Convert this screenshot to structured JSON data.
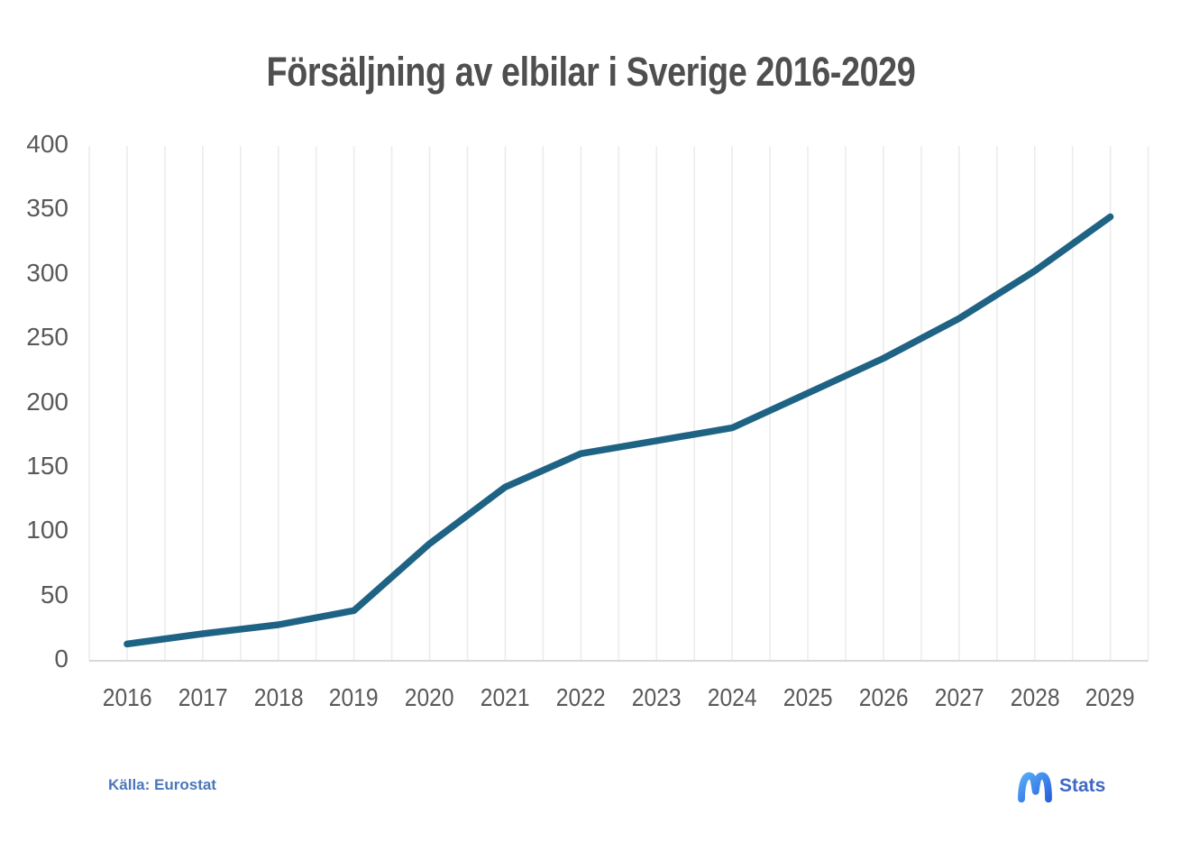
{
  "title": "Försäljning av elbilar i Sverige 2016-2029",
  "source_label": "Källa: Eurostat",
  "logo": {
    "icon": "stats-m-icon",
    "text": "Stats",
    "icon_gradient": [
      "#55aaf7",
      "#2b64dd"
    ],
    "text_color": "#3e68c5"
  },
  "chart_data": {
    "type": "line",
    "title": "Försäljning av elbilar i Sverige 2016-2029",
    "x": [
      2016,
      2017,
      2018,
      2019,
      2020,
      2021,
      2022,
      2023,
      2024,
      2025,
      2026,
      2027,
      2028,
      2029
    ],
    "series": [
      {
        "name": "Försäljning av elbilar",
        "values": [
          13,
          21,
          28,
          39,
          91,
          135,
          161,
          171,
          181,
          208,
          235,
          266,
          303,
          345
        ]
      }
    ],
    "xlabel": "",
    "ylabel": "",
    "ylim": [
      0,
      400
    ],
    "yticks": [
      0,
      50,
      100,
      150,
      200,
      250,
      300,
      350,
      400
    ],
    "grid": "vertical-only",
    "legend": "none",
    "line_color": "#1f6384",
    "line_width": 7.5,
    "grid_color": "#ececec",
    "axis_line_color": "#d8d8d8",
    "label_color": "#595959",
    "title_color": "#4f4f4f",
    "source_color": "#4a77bb"
  }
}
